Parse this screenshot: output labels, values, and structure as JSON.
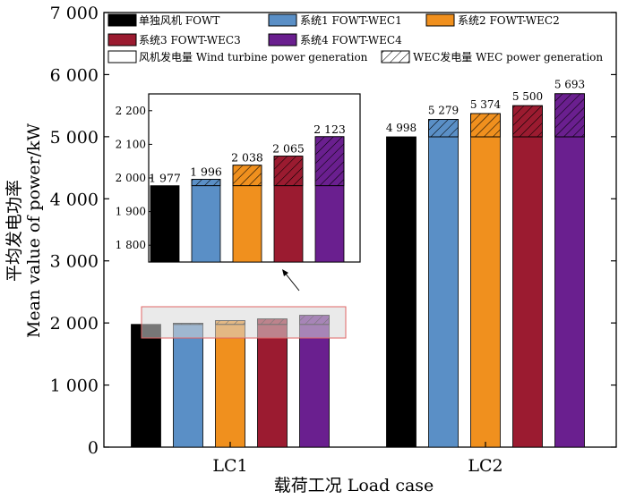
{
  "chart_data": {
    "type": "bar",
    "stacked": true,
    "xlabel": "载荷工况 Load case",
    "ylabel_cn": "平均发电功率",
    "ylabel_en": "Mean value of power/kW",
    "ylim": [
      0,
      7000
    ],
    "yticks": [
      0,
      1000,
      2000,
      3000,
      4000,
      5000,
      6000,
      7000
    ],
    "ytick_labels": [
      "0",
      "1 000",
      "2 000",
      "3 000",
      "4 000",
      "5 000",
      "6 000",
      "7 000"
    ],
    "categories": [
      "LC1",
      "LC2"
    ],
    "systems": [
      {
        "name": "单独风机 FOWT",
        "color": "#000000"
      },
      {
        "name": "系统1 FOWT-WEC1",
        "color": "#5a8fc6"
      },
      {
        "name": "系统2 FOWT-WEC2",
        "color": "#f0901e"
      },
      {
        "name": "系统3 FOWT-WEC3",
        "color": "#9b1b30"
      },
      {
        "name": "系统4 FOWT-WEC4",
        "color": "#6a1f8f"
      }
    ],
    "series": [
      {
        "name": "风机发电量 Wind turbine power generation",
        "pattern": "solid",
        "values": [
          [
            1977,
            1977,
            1977,
            1977,
            1977
          ],
          [
            4998,
            4998,
            4998,
            4998,
            4998
          ]
        ]
      },
      {
        "name": "WEC发电量 WEC power generation",
        "pattern": "hatched",
        "values": [
          [
            0,
            19,
            61,
            88,
            146
          ],
          [
            0,
            281,
            376,
            502,
            695
          ]
        ]
      }
    ],
    "totals": [
      [
        1977,
        1996,
        2038,
        2065,
        2123
      ],
      [
        4998,
        5279,
        5374,
        5500,
        5693
      ]
    ],
    "total_labels": [
      [
        "1 977",
        "1 996",
        "2 038",
        "2 065",
        "2 123"
      ],
      [
        "4 998",
        "5 279",
        "5 374",
        "5 500",
        "5 693"
      ]
    ],
    "inset": {
      "category": "LC1",
      "ylim": [
        1750,
        2250
      ],
      "yticks": [
        1800,
        1900,
        2000,
        2100,
        2200
      ],
      "ytick_labels": [
        "1 800",
        "1 900",
        "2 000",
        "2 100",
        "2 200"
      ]
    },
    "legend": {
      "placement": "top-left",
      "entries": [
        "单独风机 FOWT",
        "系统1 FOWT-WEC1",
        "系统2 FOWT-WEC2",
        "系统3 FOWT-WEC3",
        "系统4 FOWT-WEC4",
        "风机发电量 Wind turbine power generation",
        "WEC发电量 WEC power generation"
      ]
    }
  }
}
